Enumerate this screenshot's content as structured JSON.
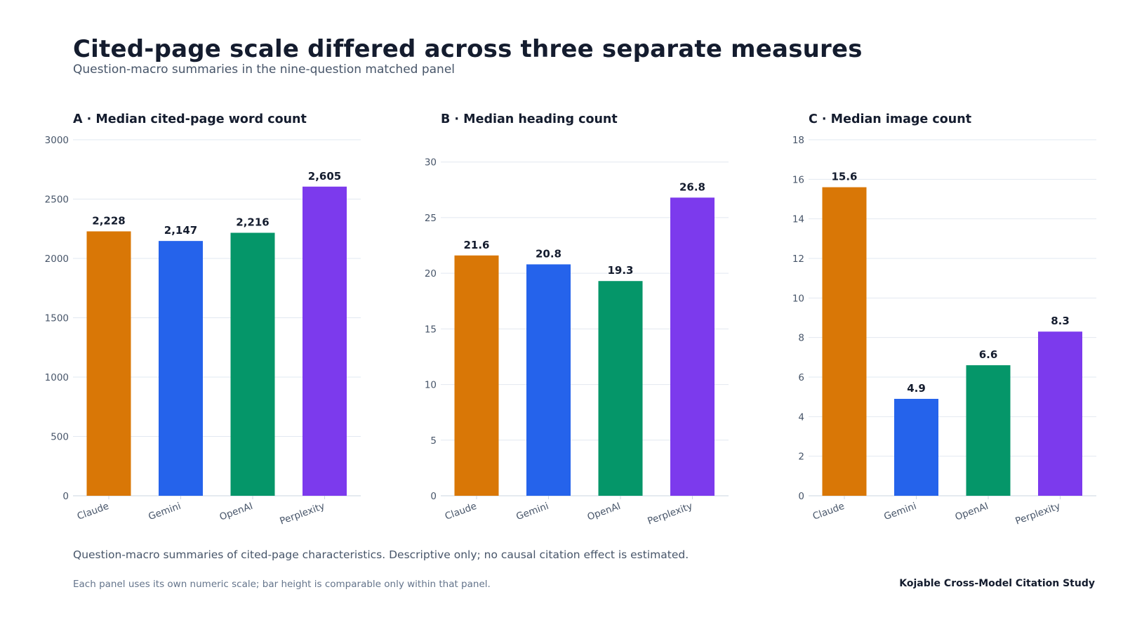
{
  "title": "Cited-page scale differed across three separate measures",
  "subtitle": "Question-macro summaries in the nine-question matched panel",
  "note": "Question-macro summaries of cited-page characteristics. Descriptive only; no causal citation effect is estimated.",
  "footnote": "Each panel uses its own numeric scale; bar height is comparable only within that panel.",
  "source": "Kojable Cross-Model Citation Study",
  "colors": {
    "Claude": "#d97706",
    "Gemini": "#2563eb",
    "OpenAI": "#059669",
    "Perplexity": "#7c3aed",
    "grid": "#e2e8f0",
    "axis": "#cbd5e1",
    "tick_text": "#475569",
    "label_text": "#141c2e"
  },
  "chart_data": [
    {
      "type": "bar",
      "title": "A · Median cited-page word count",
      "categories": [
        "Claude",
        "Gemini",
        "OpenAI",
        "Perplexity"
      ],
      "values": [
        2228,
        2147,
        2216,
        2605
      ],
      "value_labels": [
        "2,228",
        "2,147",
        "2,216",
        "2,605"
      ],
      "ylim": [
        0,
        3000
      ],
      "yticks": [
        0,
        500,
        1000,
        1500,
        2000,
        2500,
        3000
      ],
      "grid": true
    },
    {
      "type": "bar",
      "title": "B · Median heading count",
      "categories": [
        "Claude",
        "Gemini",
        "OpenAI",
        "Perplexity"
      ],
      "values": [
        21.6,
        20.8,
        19.3,
        26.8
      ],
      "value_labels": [
        "21.6",
        "20.8",
        "19.3",
        "26.8"
      ],
      "ylim": [
        0,
        32
      ],
      "yticks": [
        0,
        5,
        10,
        15,
        20,
        25,
        30
      ],
      "grid": true
    },
    {
      "type": "bar",
      "title": "C · Median image count",
      "categories": [
        "Claude",
        "Gemini",
        "OpenAI",
        "Perplexity"
      ],
      "values": [
        15.6,
        4.9,
        6.6,
        8.3
      ],
      "value_labels": [
        "15.6",
        "4.9",
        "6.6",
        "8.3"
      ],
      "ylim": [
        0,
        18
      ],
      "yticks": [
        0,
        2,
        4,
        6,
        8,
        10,
        12,
        14,
        16,
        18
      ],
      "grid": true
    }
  ]
}
